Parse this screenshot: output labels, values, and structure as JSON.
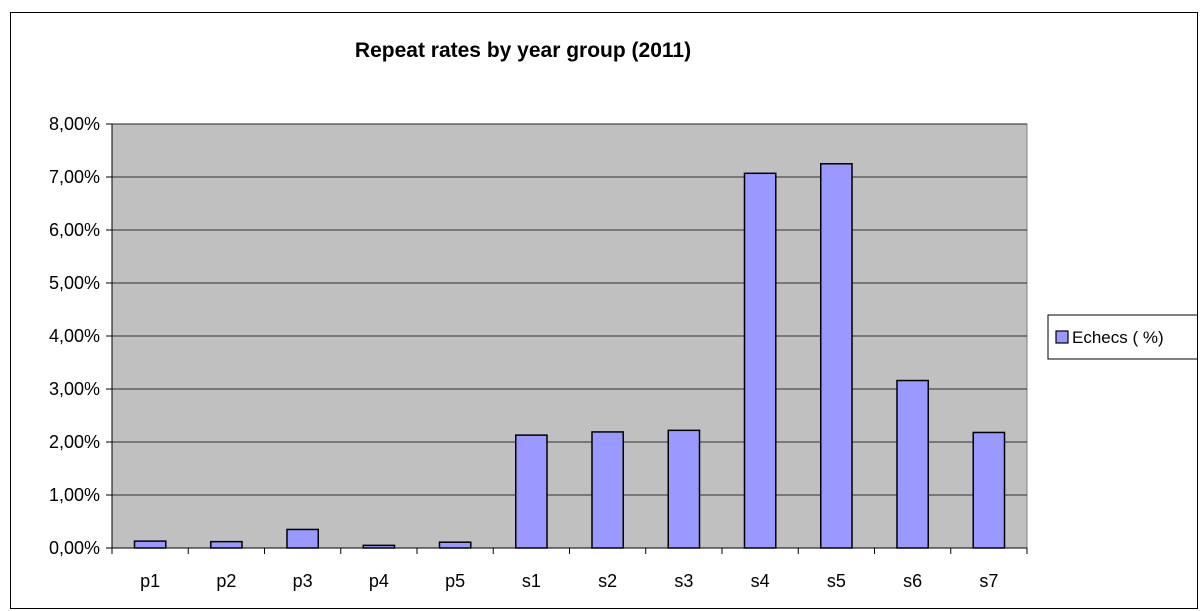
{
  "chart_data": {
    "type": "bar",
    "title": "Repeat rates by year group (2011)",
    "xlabel": "",
    "ylabel": "",
    "categories": [
      "p1",
      "p2",
      "p3",
      "p4",
      "p5",
      "s1",
      "s2",
      "s3",
      "s4",
      "s5",
      "s6",
      "s7"
    ],
    "series": [
      {
        "name": "Echecs ( %)",
        "values": [
          0.0013,
          0.0012,
          0.0035,
          0.0005,
          0.0011,
          0.0213,
          0.0219,
          0.0222,
          0.0707,
          0.0725,
          0.0316,
          0.0218
        ]
      }
    ],
    "ylim": [
      0,
      0.08
    ],
    "yticks": [
      0,
      0.01,
      0.02,
      0.03,
      0.04,
      0.05,
      0.06,
      0.07,
      0.08
    ],
    "ytick_labels": [
      "0,00%",
      "1,00%",
      "2,00%",
      "3,00%",
      "4,00%",
      "5,00%",
      "6,00%",
      "7,00%",
      "8,00%"
    ],
    "grid": true,
    "legend_position": "right",
    "colors": {
      "bar_fill": "#9999ff",
      "plot_background": "#c0c0c0",
      "gridline": "#000000"
    }
  }
}
